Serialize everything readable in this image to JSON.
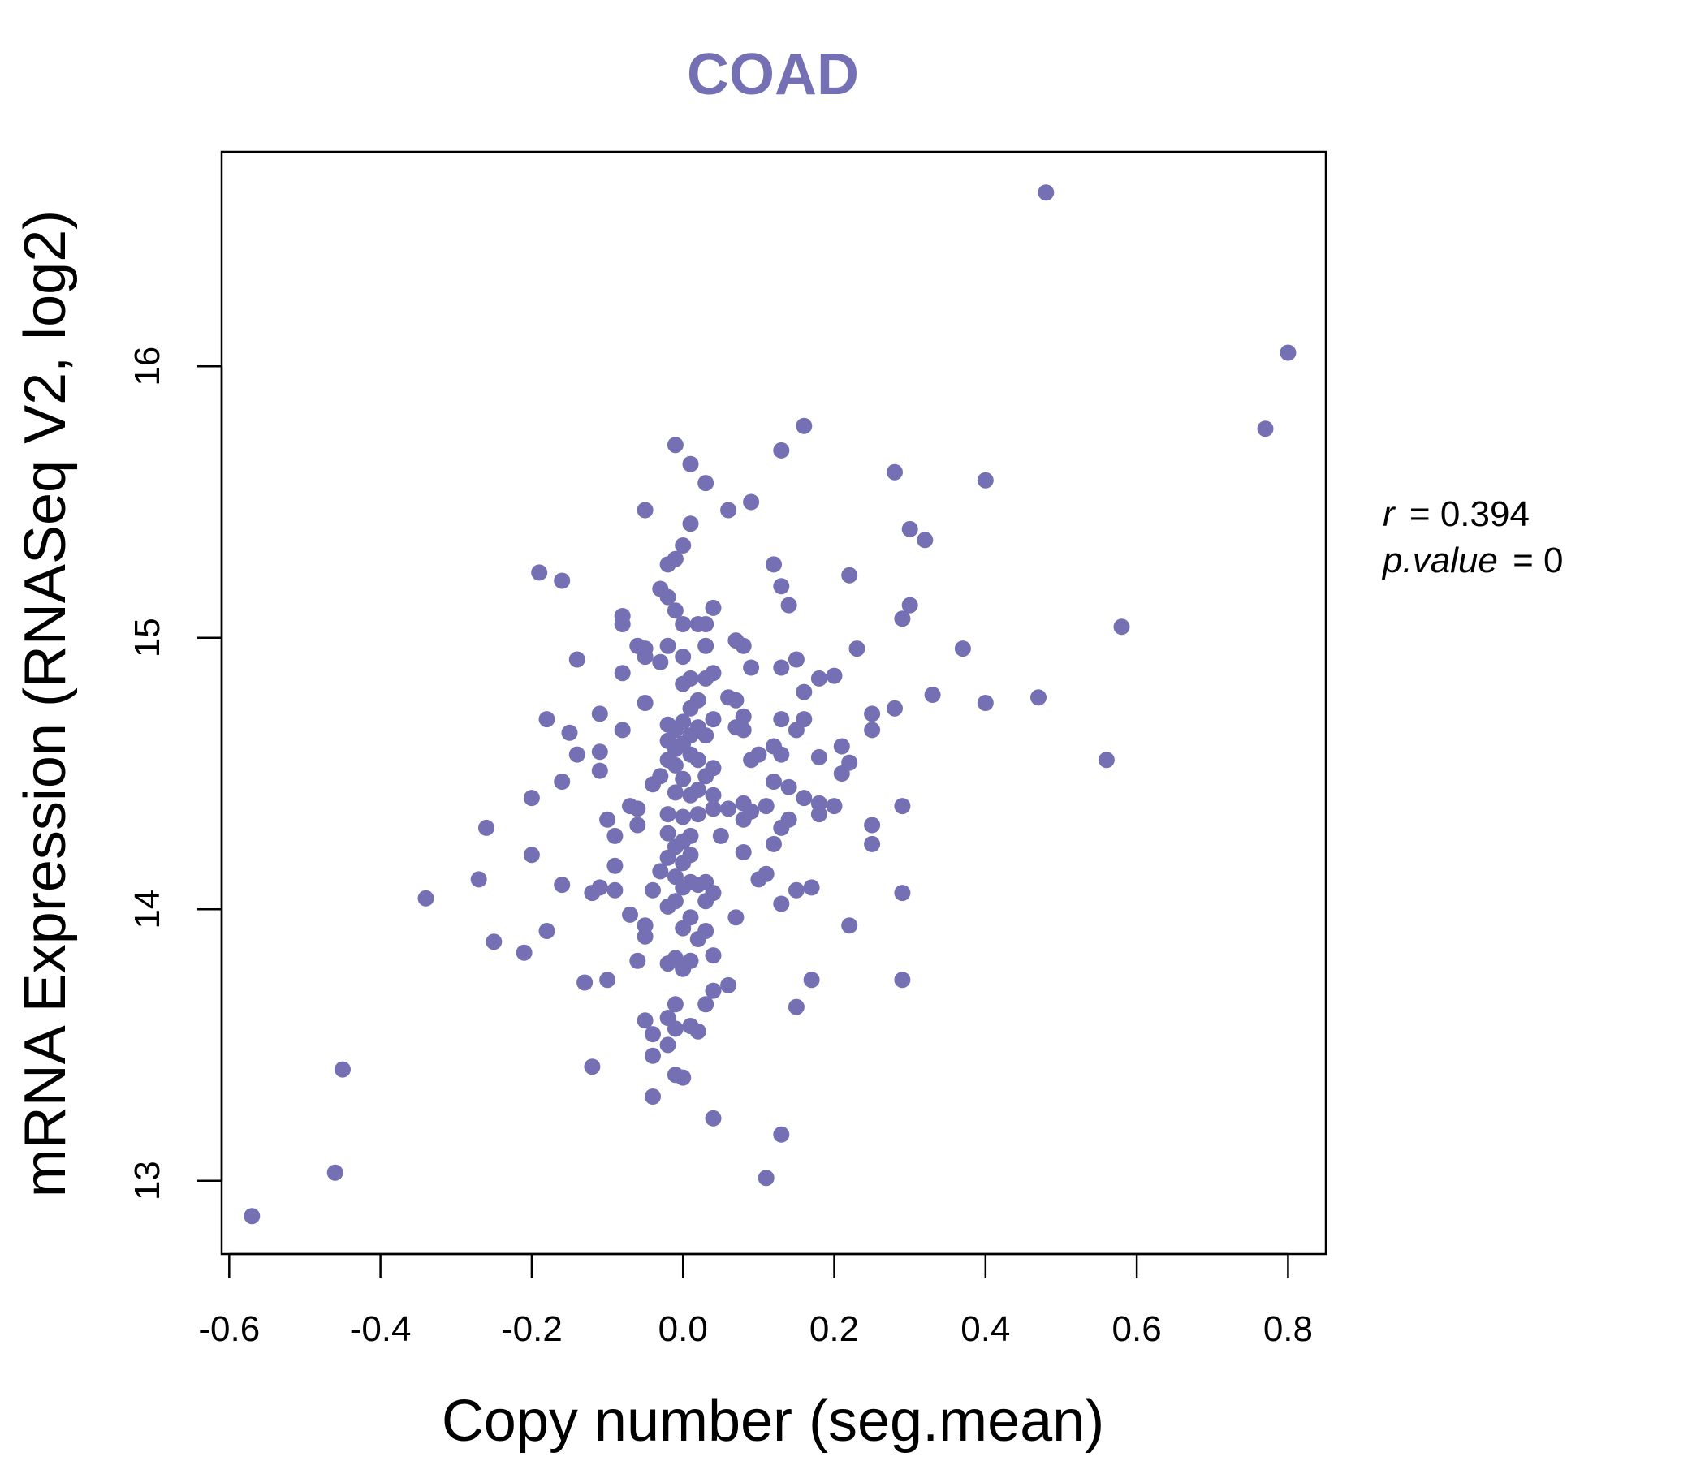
{
  "chart_data": {
    "type": "scatter",
    "title": "COAD",
    "xlabel": "Copy number (seg.mean)",
    "ylabel": "mRNA Expression (RNASeq V2, log2)",
    "xlim": [
      -0.61,
      0.85
    ],
    "ylim": [
      12.73,
      16.79
    ],
    "x_ticks": [
      -0.6,
      -0.4,
      -0.2,
      0.0,
      0.2,
      0.4,
      0.6,
      0.8
    ],
    "x_tick_labels": [
      "-0.6",
      "-0.4",
      "-0.2",
      "0.0",
      "0.2",
      "0.4",
      "0.6",
      "0.8"
    ],
    "y_ticks": [
      13,
      14,
      15,
      16
    ],
    "y_tick_labels": [
      "13",
      "14",
      "15",
      "16"
    ],
    "grid": false,
    "point_color": "#7570b3",
    "title_color": "#7570b3",
    "annotation": {
      "r_label": "r",
      "r_value": "0.394",
      "p_label": "p.value",
      "p_value": "0"
    },
    "points": [
      [
        -0.57,
        12.87
      ],
      [
        -0.46,
        13.03
      ],
      [
        -0.45,
        13.41
      ],
      [
        -0.34,
        14.04
      ],
      [
        -0.27,
        14.11
      ],
      [
        -0.25,
        13.88
      ],
      [
        -0.26,
        14.3
      ],
      [
        -0.21,
        13.84
      ],
      [
        -0.2,
        14.2
      ],
      [
        -0.2,
        14.41
      ],
      [
        -0.18,
        13.92
      ],
      [
        -0.18,
        14.7
      ],
      [
        -0.16,
        14.09
      ],
      [
        -0.16,
        14.47
      ],
      [
        -0.15,
        14.65
      ],
      [
        -0.14,
        14.57
      ],
      [
        -0.14,
        14.92
      ],
      [
        -0.13,
        13.73
      ],
      [
        -0.12,
        13.42
      ],
      [
        -0.12,
        14.06
      ],
      [
        -0.11,
        14.08
      ],
      [
        -0.11,
        14.51
      ],
      [
        -0.11,
        14.58
      ],
      [
        -0.11,
        14.72
      ],
      [
        -0.1,
        13.74
      ],
      [
        -0.1,
        14.33
      ],
      [
        -0.09,
        14.07
      ],
      [
        -0.09,
        14.16
      ],
      [
        -0.09,
        14.27
      ],
      [
        -0.08,
        14.66
      ],
      [
        -0.08,
        14.87
      ],
      [
        -0.08,
        15.05
      ],
      [
        -0.08,
        15.08
      ],
      [
        -0.07,
        13.98
      ],
      [
        -0.07,
        14.38
      ],
      [
        -0.06,
        13.81
      ],
      [
        -0.06,
        14.31
      ],
      [
        -0.06,
        14.37
      ],
      [
        -0.06,
        14.97
      ],
      [
        -0.05,
        13.59
      ],
      [
        -0.05,
        13.9
      ],
      [
        -0.05,
        13.94
      ],
      [
        -0.05,
        14.76
      ],
      [
        -0.05,
        14.93
      ],
      [
        -0.05,
        14.96
      ],
      [
        -0.05,
        15.47
      ],
      [
        -0.19,
        15.24
      ],
      [
        -0.16,
        15.21
      ],
      [
        -0.04,
        13.31
      ],
      [
        -0.04,
        13.46
      ],
      [
        -0.04,
        13.54
      ],
      [
        -0.04,
        14.07
      ],
      [
        -0.04,
        14.46
      ],
      [
        -0.03,
        14.14
      ],
      [
        -0.03,
        14.49
      ],
      [
        -0.03,
        14.91
      ],
      [
        -0.03,
        15.18
      ],
      [
        -0.02,
        13.5
      ],
      [
        -0.02,
        13.6
      ],
      [
        -0.02,
        13.8
      ],
      [
        -0.02,
        14.01
      ],
      [
        -0.02,
        14.19
      ],
      [
        -0.02,
        14.28
      ],
      [
        -0.02,
        14.35
      ],
      [
        -0.02,
        14.55
      ],
      [
        -0.02,
        14.62
      ],
      [
        -0.02,
        14.68
      ],
      [
        -0.02,
        14.97
      ],
      [
        -0.02,
        15.15
      ],
      [
        -0.02,
        15.27
      ],
      [
        -0.01,
        13.39
      ],
      [
        -0.01,
        13.56
      ],
      [
        -0.01,
        13.65
      ],
      [
        -0.01,
        13.82
      ],
      [
        -0.01,
        14.03
      ],
      [
        -0.01,
        14.12
      ],
      [
        -0.01,
        14.23
      ],
      [
        -0.01,
        14.43
      ],
      [
        -0.01,
        14.53
      ],
      [
        -0.01,
        14.59
      ],
      [
        -0.01,
        14.66
      ],
      [
        -0.01,
        15.1
      ],
      [
        -0.01,
        15.29
      ],
      [
        -0.01,
        15.71
      ],
      [
        0.0,
        13.38
      ],
      [
        0.0,
        13.78
      ],
      [
        0.0,
        13.93
      ],
      [
        0.0,
        14.08
      ],
      [
        0.0,
        14.17
      ],
      [
        0.0,
        14.25
      ],
      [
        0.0,
        14.34
      ],
      [
        0.0,
        14.48
      ],
      [
        0.0,
        14.61
      ],
      [
        0.0,
        14.69
      ],
      [
        0.0,
        14.83
      ],
      [
        0.0,
        14.93
      ],
      [
        0.0,
        15.05
      ],
      [
        0.0,
        15.34
      ],
      [
        0.01,
        13.57
      ],
      [
        0.01,
        13.81
      ],
      [
        0.01,
        13.97
      ],
      [
        0.01,
        14.1
      ],
      [
        0.01,
        14.2
      ],
      [
        0.01,
        14.27
      ],
      [
        0.01,
        14.42
      ],
      [
        0.01,
        14.57
      ],
      [
        0.01,
        14.64
      ],
      [
        0.01,
        14.74
      ],
      [
        0.01,
        14.85
      ],
      [
        0.01,
        15.42
      ],
      [
        0.01,
        15.64
      ],
      [
        0.02,
        13.55
      ],
      [
        0.02,
        13.89
      ],
      [
        0.02,
        14.09
      ],
      [
        0.02,
        14.35
      ],
      [
        0.02,
        14.44
      ],
      [
        0.02,
        14.55
      ],
      [
        0.02,
        14.67
      ],
      [
        0.02,
        14.77
      ],
      [
        0.02,
        15.05
      ],
      [
        0.03,
        13.65
      ],
      [
        0.03,
        13.92
      ],
      [
        0.03,
        14.03
      ],
      [
        0.03,
        14.1
      ],
      [
        0.03,
        14.49
      ],
      [
        0.03,
        14.64
      ],
      [
        0.03,
        14.85
      ],
      [
        0.03,
        14.97
      ],
      [
        0.03,
        15.05
      ],
      [
        0.03,
        15.57
      ],
      [
        0.04,
        13.23
      ],
      [
        0.04,
        13.7
      ],
      [
        0.04,
        13.83
      ],
      [
        0.04,
        14.06
      ],
      [
        0.04,
        14.37
      ],
      [
        0.04,
        14.42
      ],
      [
        0.04,
        14.52
      ],
      [
        0.04,
        14.7
      ],
      [
        0.04,
        14.87
      ],
      [
        0.04,
        15.11
      ],
      [
        0.05,
        14.27
      ],
      [
        0.06,
        13.72
      ],
      [
        0.06,
        14.37
      ],
      [
        0.06,
        14.78
      ],
      [
        0.06,
        15.47
      ],
      [
        0.07,
        13.97
      ],
      [
        0.07,
        14.67
      ],
      [
        0.07,
        14.77
      ],
      [
        0.07,
        14.99
      ],
      [
        0.08,
        14.21
      ],
      [
        0.08,
        14.33
      ],
      [
        0.08,
        14.39
      ],
      [
        0.08,
        14.66
      ],
      [
        0.08,
        14.71
      ],
      [
        0.08,
        14.97
      ],
      [
        0.09,
        14.36
      ],
      [
        0.09,
        14.55
      ],
      [
        0.09,
        14.89
      ],
      [
        0.09,
        15.5
      ],
      [
        0.1,
        14.11
      ],
      [
        0.1,
        14.57
      ],
      [
        0.11,
        13.01
      ],
      [
        0.11,
        14.13
      ],
      [
        0.11,
        14.38
      ],
      [
        0.12,
        14.24
      ],
      [
        0.12,
        14.47
      ],
      [
        0.12,
        14.6
      ],
      [
        0.12,
        15.27
      ],
      [
        0.13,
        13.17
      ],
      [
        0.13,
        14.02
      ],
      [
        0.13,
        14.3
      ],
      [
        0.13,
        14.57
      ],
      [
        0.13,
        14.7
      ],
      [
        0.13,
        14.89
      ],
      [
        0.13,
        15.19
      ],
      [
        0.13,
        15.69
      ],
      [
        0.14,
        14.33
      ],
      [
        0.14,
        14.45
      ],
      [
        0.14,
        15.12
      ],
      [
        0.15,
        13.64
      ],
      [
        0.15,
        14.07
      ],
      [
        0.15,
        14.66
      ],
      [
        0.15,
        14.92
      ],
      [
        0.16,
        14.41
      ],
      [
        0.16,
        14.7
      ],
      [
        0.16,
        14.8
      ],
      [
        0.16,
        15.78
      ],
      [
        0.17,
        13.74
      ],
      [
        0.17,
        14.08
      ],
      [
        0.18,
        14.35
      ],
      [
        0.18,
        14.39
      ],
      [
        0.18,
        14.56
      ],
      [
        0.18,
        14.85
      ],
      [
        0.2,
        14.38
      ],
      [
        0.2,
        14.86
      ],
      [
        0.21,
        14.5
      ],
      [
        0.21,
        14.6
      ],
      [
        0.22,
        13.94
      ],
      [
        0.22,
        14.54
      ],
      [
        0.22,
        15.23
      ],
      [
        0.23,
        14.96
      ],
      [
        0.25,
        14.24
      ],
      [
        0.25,
        14.31
      ],
      [
        0.25,
        14.66
      ],
      [
        0.25,
        14.72
      ],
      [
        0.28,
        14.74
      ],
      [
        0.28,
        15.61
      ],
      [
        0.29,
        14.06
      ],
      [
        0.29,
        14.38
      ],
      [
        0.29,
        13.74
      ],
      [
        0.29,
        15.07
      ],
      [
        0.3,
        15.12
      ],
      [
        0.3,
        15.4
      ],
      [
        0.32,
        15.36
      ],
      [
        0.33,
        14.79
      ],
      [
        0.37,
        14.96
      ],
      [
        0.4,
        14.76
      ],
      [
        0.4,
        15.58
      ],
      [
        0.47,
        14.78
      ],
      [
        0.48,
        16.64
      ],
      [
        0.56,
        14.55
      ],
      [
        0.58,
        15.04
      ],
      [
        0.77,
        15.77
      ],
      [
        0.8,
        16.05
      ]
    ]
  }
}
